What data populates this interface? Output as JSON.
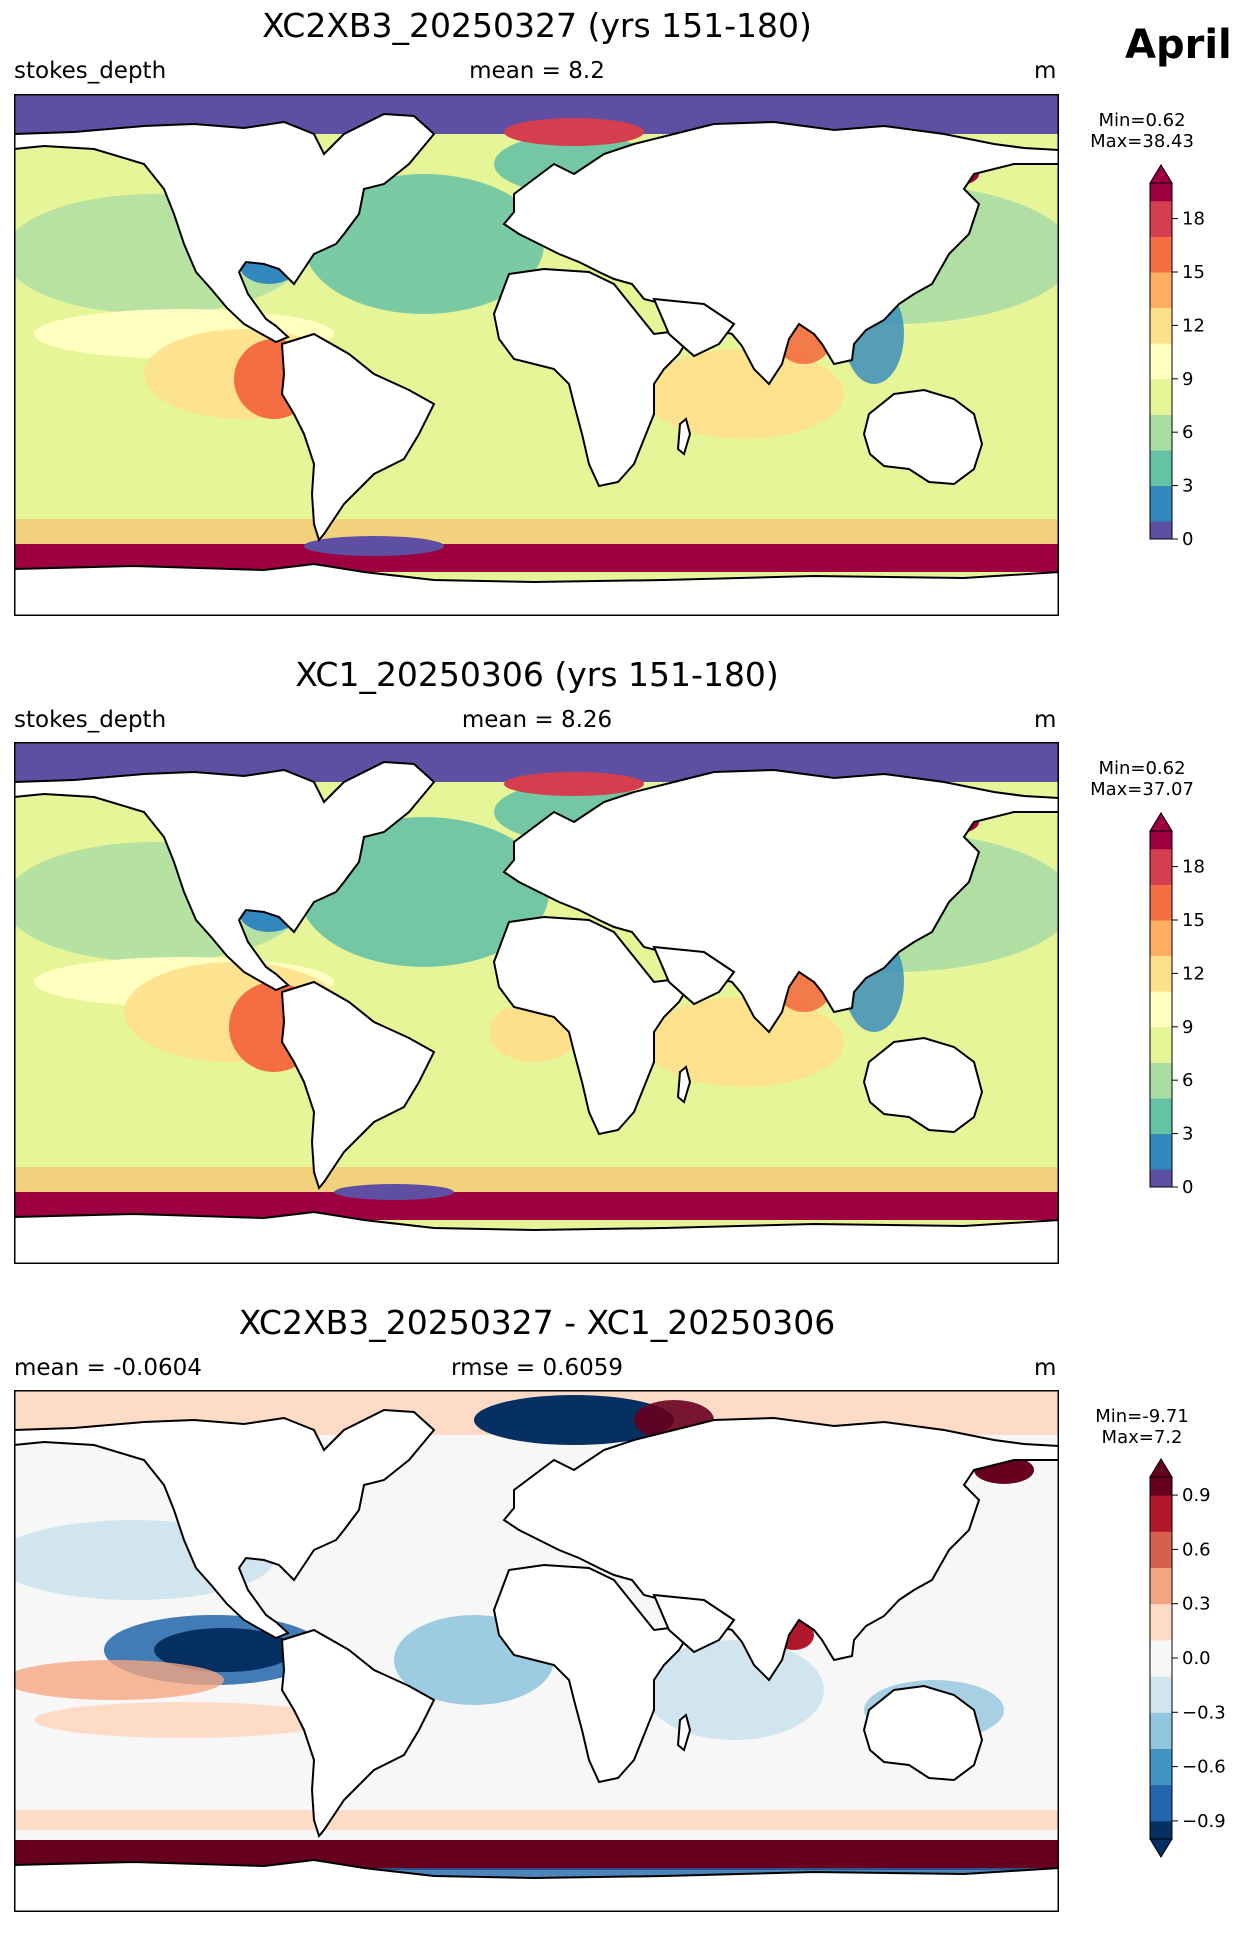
{
  "month": "April",
  "panels": [
    {
      "title": "XC2XB3_20250327 (yrs 151-180)",
      "left": "stokes_depth",
      "center": "mean = 8.2",
      "right": "m",
      "colorbar": {
        "min_text": "Min=0.62",
        "max_text": "Max=38.43",
        "ticks": [
          "18",
          "15",
          "12",
          "9",
          "6",
          "3",
          "0"
        ],
        "tick_values": [
          18,
          15,
          12,
          9,
          6,
          3,
          0
        ],
        "range": [
          0,
          20
        ],
        "colormap": "Spectral_r"
      }
    },
    {
      "title": "XC1_20250306 (yrs 151-180)",
      "left": "stokes_depth",
      "center": "mean = 8.26",
      "right": "m",
      "colorbar": {
        "min_text": "Min=0.62",
        "max_text": "Max=37.07",
        "ticks": [
          "18",
          "15",
          "12",
          "9",
          "6",
          "3",
          "0"
        ],
        "tick_values": [
          18,
          15,
          12,
          9,
          6,
          3,
          0
        ],
        "range": [
          0,
          20
        ],
        "colormap": "Spectral_r"
      }
    },
    {
      "title": "XC2XB3_20250327 - XC1_20250306",
      "left": "mean = -0.0604",
      "center": "rmse = 0.6059",
      "right": "m",
      "colorbar": {
        "min_text": "Min=-9.71",
        "max_text": "Max=7.2",
        "ticks": [
          "0.9",
          "0.6",
          "0.3",
          "0.0",
          "−0.3",
          "−0.6",
          "−0.9"
        ],
        "tick_values": [
          0.9,
          0.6,
          0.3,
          0.0,
          -0.3,
          -0.6,
          -0.9
        ],
        "range": [
          -1,
          1
        ],
        "colormap": "RdBu_r"
      }
    }
  ],
  "colors": {
    "spectral": [
      "#5e4fa2",
      "#3288bd",
      "#66c2a5",
      "#abdda4",
      "#e6f598",
      "#ffffbf",
      "#fee08b",
      "#fdae61",
      "#f46d43",
      "#d53e4f",
      "#9e0142"
    ],
    "rdbu": [
      "#053061",
      "#2166ac",
      "#4393c3",
      "#92c5de",
      "#d1e5f0",
      "#f7f7f7",
      "#fddbc7",
      "#f4a582",
      "#d6604d",
      "#b2182b",
      "#67001f"
    ],
    "land": "#ffffff",
    "coast": "#000000"
  }
}
